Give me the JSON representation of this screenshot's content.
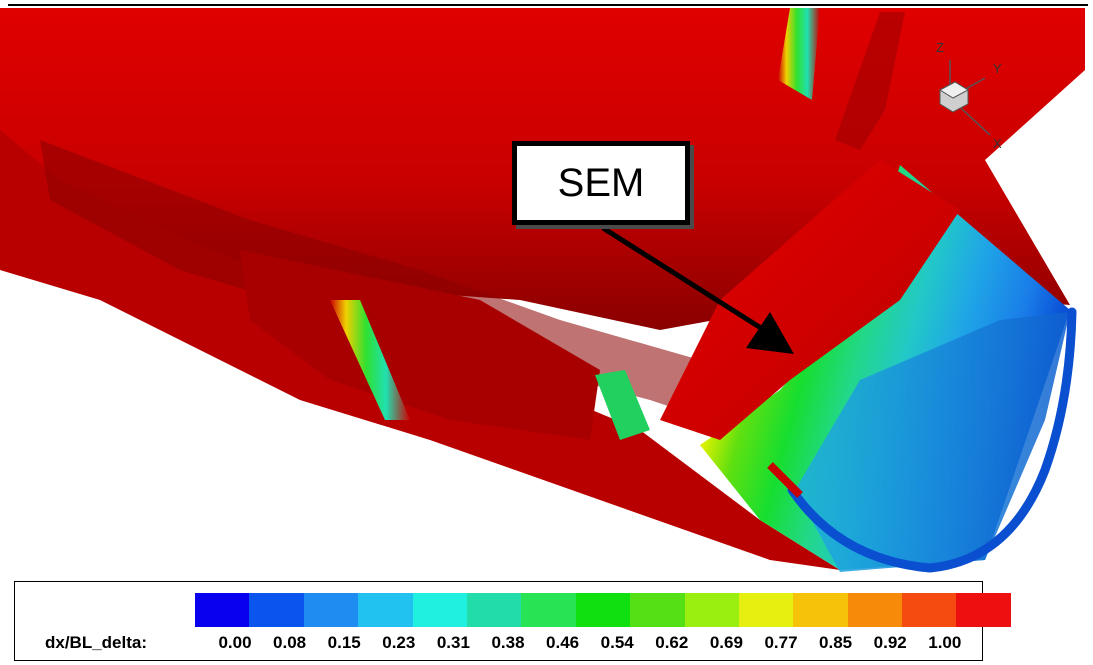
{
  "callout": {
    "label": "SEM"
  },
  "axes_triad": {
    "x_label": "X",
    "y_label": "Y",
    "z_label": "Z"
  },
  "legend": {
    "title": "dx/BL_delta:",
    "ticks": [
      "0.00",
      "0.08",
      "0.15",
      "0.23",
      "0.31",
      "0.38",
      "0.46",
      "0.54",
      "0.62",
      "0.69",
      "0.77",
      "0.85",
      "0.92",
      "1.00"
    ],
    "colors": [
      "#0a00f0",
      "#0a55ee",
      "#1e8cf0",
      "#22c2f0",
      "#20f0e0",
      "#22ddaa",
      "#28e455",
      "#10e010",
      "#55e015",
      "#9aee10",
      "#e6f010",
      "#f7c20a",
      "#f78a08",
      "#f54a10",
      "#ee1010"
    ]
  },
  "colors": {
    "body": "#cc0000",
    "body_dark": "#8a0000",
    "inner_wall_blue": "#1a72c8",
    "rim_blue": "#0a4fd0"
  }
}
